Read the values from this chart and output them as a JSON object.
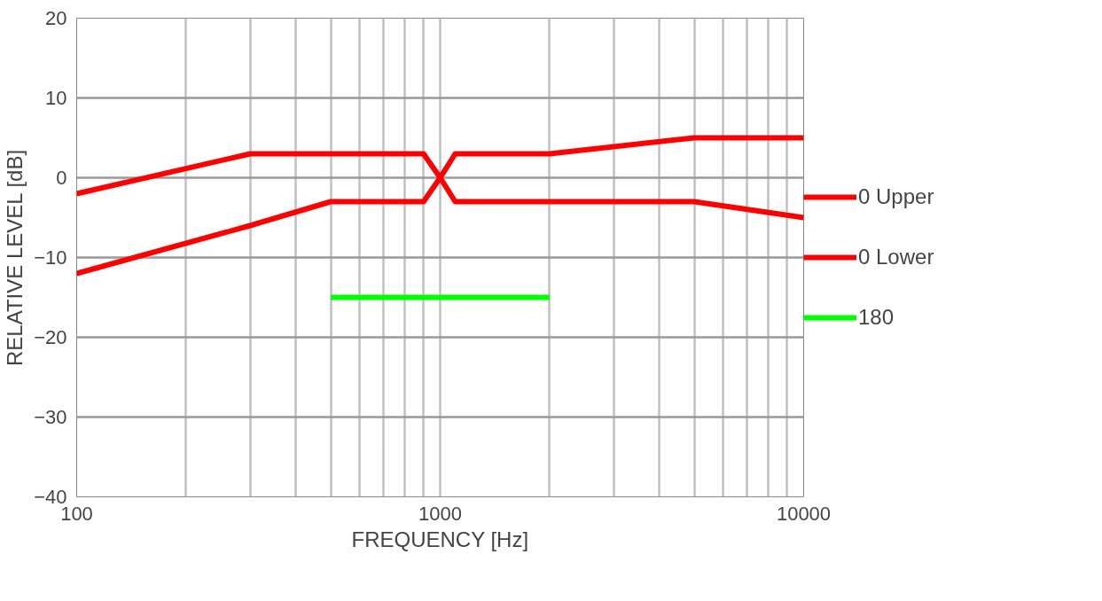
{
  "chart_data": {
    "type": "line",
    "xlabel": "FREQUENCY [Hz]",
    "ylabel": "RELATIVE LEVEL [dB]",
    "log": "x",
    "xlim": [
      100,
      10000
    ],
    "ylim": [
      -40,
      20
    ],
    "xticks": [
      100,
      {
        "value": 200,
        "label": null
      },
      {
        "value": 300,
        "label": null
      },
      {
        "value": 400,
        "label": null
      },
      {
        "value": 500,
        "label": null
      },
      {
        "value": 600,
        "label": null
      },
      {
        "value": 700,
        "label": null
      },
      {
        "value": 800,
        "label": null
      },
      {
        "value": 900,
        "label": null
      },
      1000,
      {
        "value": 2000,
        "label": null
      },
      {
        "value": 3000,
        "label": null
      },
      {
        "value": 4000,
        "label": null
      },
      {
        "value": 5000,
        "label": null
      },
      {
        "value": 6000,
        "label": null
      },
      {
        "value": 7000,
        "label": null
      },
      {
        "value": 8000,
        "label": null
      },
      {
        "value": 9000,
        "label": null
      },
      10000
    ],
    "yticks": [
      {
        "value": -40,
        "label": "−40"
      },
      {
        "value": -30,
        "label": "−30"
      },
      {
        "value": -20,
        "label": "−20"
      },
      {
        "value": -10,
        "label": "−10"
      },
      0,
      10,
      20
    ],
    "grid": true,
    "legend": "right",
    "line_style": "solid",
    "marker": "none",
    "series": [
      {
        "name": "0 Upper",
        "color": "#ff0000",
        "x": [
          100,
          300,
          900,
          1000,
          1100,
          2000,
          5000,
          10000
        ],
        "values": [
          -2,
          3,
          3,
          0,
          3,
          3,
          5,
          5
        ]
      },
      {
        "name": "0 Lower",
        "color": "#ff0000",
        "x": [
          100,
          300,
          500,
          900,
          1000,
          1100,
          5000,
          10000
        ],
        "values": [
          -12,
          -6,
          -3,
          -3,
          0,
          -3,
          -3,
          -5
        ]
      },
      {
        "name": "180",
        "color": "#00ff00",
        "x": [
          500,
          2000
        ],
        "values": [
          -15,
          -15
        ]
      }
    ]
  }
}
